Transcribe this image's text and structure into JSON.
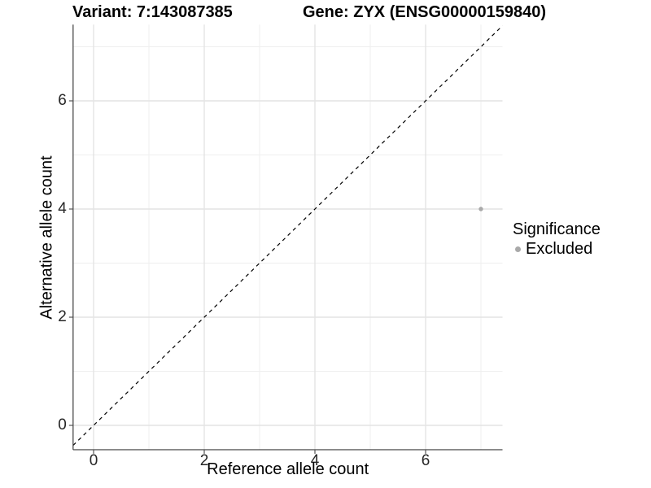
{
  "header": {
    "title_left": "Variant: 7:143087385",
    "title_right": "Gene: ZYX (ENSG00000159840)"
  },
  "chart_data": {
    "type": "scatter",
    "title": "Variant: 7:143087385   Gene: ZYX (ENSG00000159840)",
    "xlabel": "Reference allele count",
    "ylabel": "Alternative allele count",
    "xlim": [
      -0.37,
      7.39
    ],
    "ylim": [
      -0.45,
      7.41
    ],
    "x_ticks": [
      0,
      2,
      4,
      6
    ],
    "y_ticks": [
      0,
      2,
      4,
      6
    ],
    "x_minor": [
      1,
      3,
      5,
      7
    ],
    "y_minor": [
      1,
      3,
      5,
      7
    ],
    "grid": true,
    "reference_line": {
      "kind": "identity-diagonal",
      "style": "dashed",
      "color": "#000000"
    },
    "series": [
      {
        "name": "Excluded",
        "color": "#a9a9a9",
        "points": [
          {
            "x": 7,
            "y": 4
          }
        ]
      }
    ],
    "legend": {
      "title": "Significance",
      "position": "right",
      "items": [
        {
          "label": "Excluded",
          "color": "#a9a9a9"
        }
      ]
    },
    "colors": {
      "background": "#ffffff",
      "grid_major": "#e4e4e4",
      "grid_minor": "#efefef",
      "axis_line": "#3d3d3d",
      "tick_mark": "#555555",
      "tick_text": "#262626"
    }
  }
}
